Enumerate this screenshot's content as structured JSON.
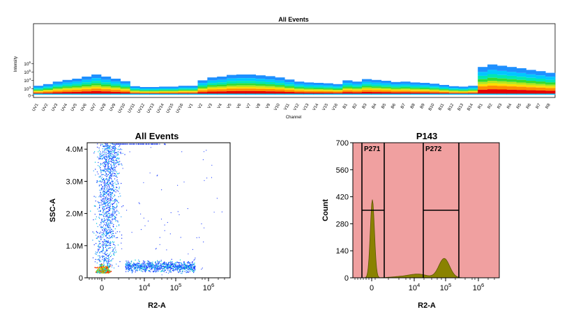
{
  "chart_data": [
    {
      "type": "heatmap",
      "title": "All Events",
      "xlabel": "Channel",
      "ylabel": "Intensity",
      "y_ticks": [
        "10^6",
        "10^5",
        "10^4",
        "10^3",
        "0"
      ],
      "categories": [
        "UV1",
        "UV2",
        "UV3",
        "UV4",
        "UV5",
        "UV6",
        "UV7",
        "UV8",
        "UV9",
        "UV10",
        "UV11",
        "UV12",
        "UV13",
        "UV14",
        "UV15",
        "UV16",
        "V1",
        "V2",
        "V3",
        "V4",
        "V5",
        "V6",
        "V7",
        "V8",
        "V9",
        "V10",
        "V11",
        "V12",
        "V13",
        "V14",
        "V15",
        "V16",
        "B1",
        "B2",
        "B3",
        "B4",
        "B5",
        "B6",
        "B7",
        "B8",
        "B9",
        "B10",
        "B11",
        "B12",
        "B13",
        "B14",
        "R1",
        "R2",
        "R3",
        "R4",
        "R5",
        "R6",
        "R7",
        "R8"
      ],
      "max_log": [
        3.35,
        3.55,
        3.85,
        4.05,
        4.2,
        4.45,
        4.7,
        4.45,
        4.2,
        3.9,
        3.3,
        3.2,
        3.2,
        3.25,
        3.25,
        3.35,
        3.35,
        4.0,
        4.35,
        4.45,
        4.65,
        4.7,
        4.7,
        4.6,
        4.5,
        4.35,
        4.1,
        3.85,
        3.75,
        3.7,
        3.65,
        3.55,
        4.0,
        3.85,
        4.15,
        4.05,
        3.95,
        3.8,
        3.85,
        3.75,
        3.7,
        3.6,
        3.45,
        3.3,
        3.25,
        3.35,
        5.6,
        5.9,
        5.75,
        5.6,
        5.45,
        5.25,
        5.1,
        4.9
      ],
      "color_scale": [
        "#1e90ff",
        "#00c8ff",
        "#00e6b4",
        "#32dc32",
        "#b4e61e",
        "#ffdc00",
        "#ff8c00",
        "#e60000"
      ]
    },
    {
      "type": "scatter",
      "title": "All Events",
      "xlabel": "R2-A",
      "ylabel": "SSC-A",
      "x_ticks": [
        "0",
        "10^4",
        "10^5",
        "10^6"
      ],
      "y_ticks": [
        "0",
        "1.0M",
        "2.0M",
        "3.0M",
        "4.0M"
      ],
      "ylim": [
        0,
        4200000
      ],
      "populations": [
        {
          "x_center": 0,
          "y_center": 150000,
          "density": "high"
        },
        {
          "x_center": 800,
          "y_center": 2000000,
          "y_range": [
            300000,
            4200000
          ],
          "density": "medium"
        },
        {
          "x_center": 60000,
          "y_center": 350000,
          "density": "medium"
        }
      ]
    },
    {
      "type": "area",
      "title": "P143",
      "xlabel": "R2-A",
      "ylabel": "Count",
      "x_ticks": [
        "0",
        "10^4",
        "10^5",
        "10^6"
      ],
      "y_ticks": [
        "0",
        "140",
        "280",
        "420",
        "560",
        "700"
      ],
      "ylim": [
        0,
        700
      ],
      "peaks": [
        {
          "x": 0,
          "count": 405
        },
        {
          "x": 80000,
          "count": 100
        }
      ],
      "gates": [
        {
          "name": "P271",
          "range": [
            "-300",
            "~1,500"
          ]
        },
        {
          "name": "P272",
          "range": [
            "~1,700",
            "~300,000"
          ]
        }
      ],
      "gate_color": "#f0a0a0",
      "fill_color": "#8a8200"
    }
  ]
}
